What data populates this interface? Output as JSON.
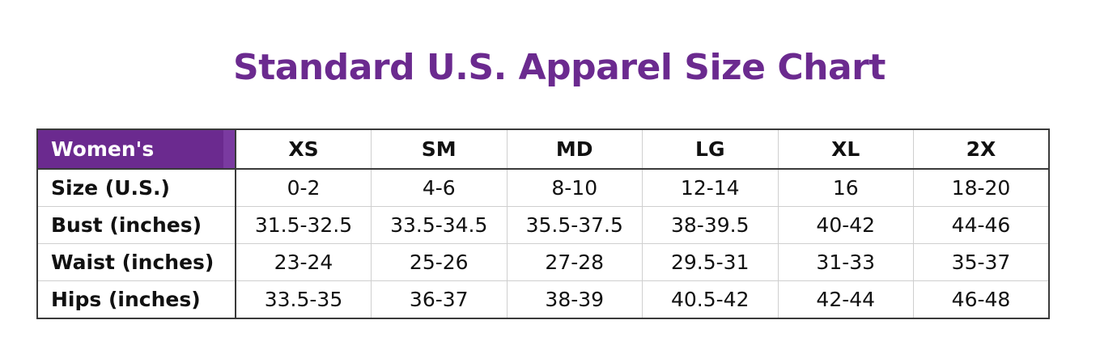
{
  "title": "Standard U.S. Apparel Size Chart",
  "colors": {
    "accent": "#6b2a8f",
    "header_text": "#ffffff",
    "text": "#111111",
    "border": "#3a3a3a"
  },
  "table": {
    "corner_label": "Women's",
    "columns": [
      "XS",
      "SM",
      "MD",
      "LG",
      "XL",
      "2X"
    ],
    "rows": [
      {
        "label": "Size (U.S.)",
        "values": [
          "0-2",
          "4-6",
          "8-10",
          "12-14",
          "16",
          "18-20"
        ]
      },
      {
        "label": "Bust (inches)",
        "values": [
          "31.5-32.5",
          "33.5-34.5",
          "35.5-37.5",
          "38-39.5",
          "40-42",
          "44-46"
        ]
      },
      {
        "label": "Waist (inches)",
        "values": [
          "23-24",
          "25-26",
          "27-28",
          "29.5-31",
          "31-33",
          "35-37"
        ]
      },
      {
        "label": "Hips (inches)",
        "values": [
          "33.5-35",
          "36-37",
          "38-39",
          "40.5-42",
          "42-44",
          "46-48"
        ]
      }
    ]
  }
}
